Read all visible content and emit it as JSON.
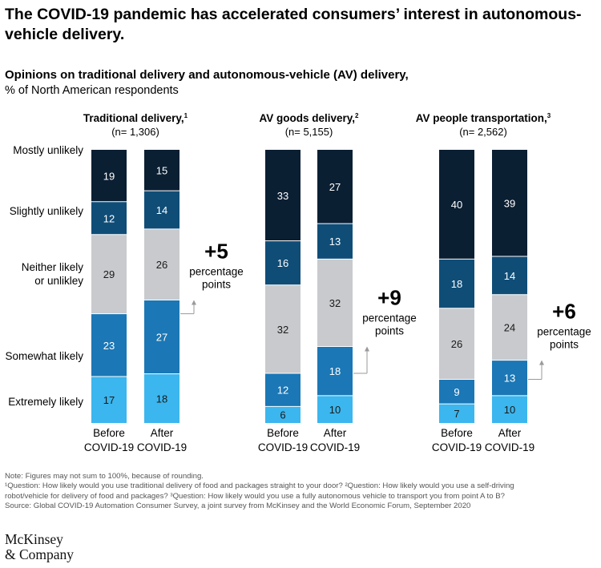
{
  "title": "The COVID-19 pandemic has accelerated consumers’ interest in autonomous-vehicle delivery.",
  "subtitle": "Opinions on traditional delivery and autonomous-vehicle (AV) delivery,",
  "unit": "% of North American respondents",
  "colors": {
    "mostly_unlikely": "#0b1f33",
    "slightly_unlikely": "#0f4d77",
    "neither": "#c8cacd",
    "somewhat_likely": "#1b77b5",
    "extremely_likely": "#3bb6ee"
  },
  "chart_data": {
    "type": "bar",
    "stacked": true,
    "ylim": [
      0,
      100
    ],
    "categories": [
      "Before COVID-19",
      "After COVID-19"
    ],
    "category_lines": [
      [
        "Before",
        "COVID-19"
      ],
      [
        "After",
        "COVID-19"
      ]
    ],
    "rating_labels": [
      [
        "Extremely likely"
      ],
      [
        "Somewhat likely"
      ],
      [
        "Neither likely",
        "or unlikley"
      ],
      [
        "Slightly unlikely"
      ],
      [
        "Mostly unlikely"
      ]
    ],
    "series_keys": [
      "extremely_likely",
      "somewhat_likely",
      "neither",
      "slightly_unlikely",
      "mostly_unlikely"
    ],
    "panels": [
      {
        "title": "Traditional delivery,",
        "footnote_mark": "1",
        "n": "(n= 1,306)",
        "bars": [
          [
            17,
            23,
            29,
            12,
            19
          ],
          [
            18,
            27,
            26,
            14,
            15
          ]
        ],
        "change": "+5",
        "change_lines": [
          "percentage",
          "points"
        ]
      },
      {
        "title": "AV goods delivery,",
        "footnote_mark": "2",
        "n": "(n= 5,155)",
        "bars": [
          [
            6,
            12,
            32,
            16,
            33
          ],
          [
            10,
            18,
            32,
            13,
            27
          ]
        ],
        "change": "+9",
        "change_lines": [
          "percentage",
          "points"
        ]
      },
      {
        "title": "AV people transportation,",
        "footnote_mark": "3",
        "n": "(n= 2,562)",
        "bars": [
          [
            7,
            9,
            26,
            18,
            40
          ],
          [
            10,
            13,
            24,
            14,
            39
          ]
        ],
        "change": "+6",
        "change_lines": [
          "percentage",
          "points"
        ]
      }
    ]
  },
  "footnotes": {
    "note": "Note: Figures may not sum to 100%, because of rounding.",
    "line1": "¹Question: How likely would you use traditional delivery of food and packages straight to your door? ²Question: How likely would you use a self-driving",
    "line2": "robot/vehicle for delivery of food and packages? ³Question: How likely would you use a fully autonomous vehicle to transport you from point A to B?",
    "source": "Source: Global COVID-19 Automation Consumer Survey, a joint survey from McKinsey and the World Economic Forum, September 2020"
  },
  "logo": {
    "line1": "McKinsey",
    "line2": "& Company"
  }
}
